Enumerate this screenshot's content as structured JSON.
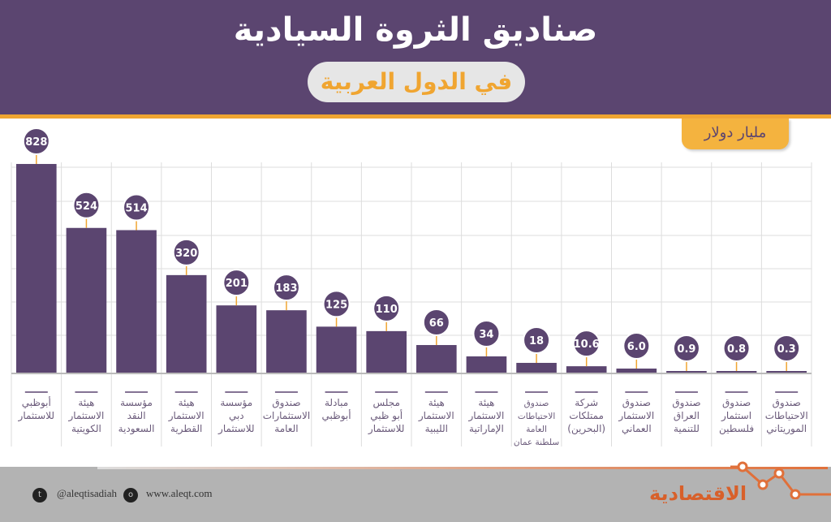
{
  "header": {
    "title": "صناديق الثروة السيادية",
    "subtitle": "في الدول العربية"
  },
  "chart_data": {
    "type": "bar",
    "title": "صناديق الثروة السيادية",
    "subtitle": "في الدول العربية",
    "ylabel": "مليار دولار",
    "grid": true,
    "colors": {
      "bar": "#5b4570",
      "label_bubble": "#5b4570",
      "connector": "#f0a531"
    },
    "categories": [
      [
        "أبوظبي",
        "للاستثمار"
      ],
      [
        "هيئة",
        "الاستثمار",
        "الكويتية"
      ],
      [
        "مؤسسة",
        "النقد",
        "السعودية"
      ],
      [
        "هيئة",
        "الاستثمار",
        "القطرية"
      ],
      [
        "مؤسسة",
        "دبي",
        "للاستثمار"
      ],
      [
        "صندوق",
        "الاستثمارات",
        "العامة"
      ],
      [
        "مبادلة",
        "أبوظبي"
      ],
      [
        "مجلس",
        "أبو ظبي",
        "للاستثمار"
      ],
      [
        "هيئة",
        "الاستثمار",
        "الليبية"
      ],
      [
        "هيئة",
        "الاستثمار",
        "الإماراتية"
      ],
      [
        "صندوق",
        "الاحتياطات",
        "العامة",
        "سلطنة عمان"
      ],
      [
        "شركة",
        "ممتلكات",
        "(البحرين)"
      ],
      [
        "صندوق",
        "الاستثمار",
        "العماني"
      ],
      [
        "صندوق",
        "العراق",
        "للتنمية"
      ],
      [
        "صندوق",
        "استثمار",
        "فلسطين"
      ],
      [
        "صندوق",
        "الاحتياطات",
        "الموريتاني"
      ]
    ],
    "values": [
      828,
      524,
      514,
      320,
      201,
      183,
      125,
      110,
      66,
      34,
      18,
      10.6,
      6.0,
      0.9,
      0.8,
      0.3
    ],
    "value_labels": [
      "828",
      "524",
      "514",
      "320",
      "201",
      "183",
      "125",
      "110",
      "66",
      "34",
      "18",
      "10.6",
      "6.0",
      "0.9",
      "0.8",
      "0.3"
    ]
  },
  "footer": {
    "twitter": "@aleqtisadiah",
    "website": "www.aleqt.com",
    "logo": "الاقتصادية"
  }
}
